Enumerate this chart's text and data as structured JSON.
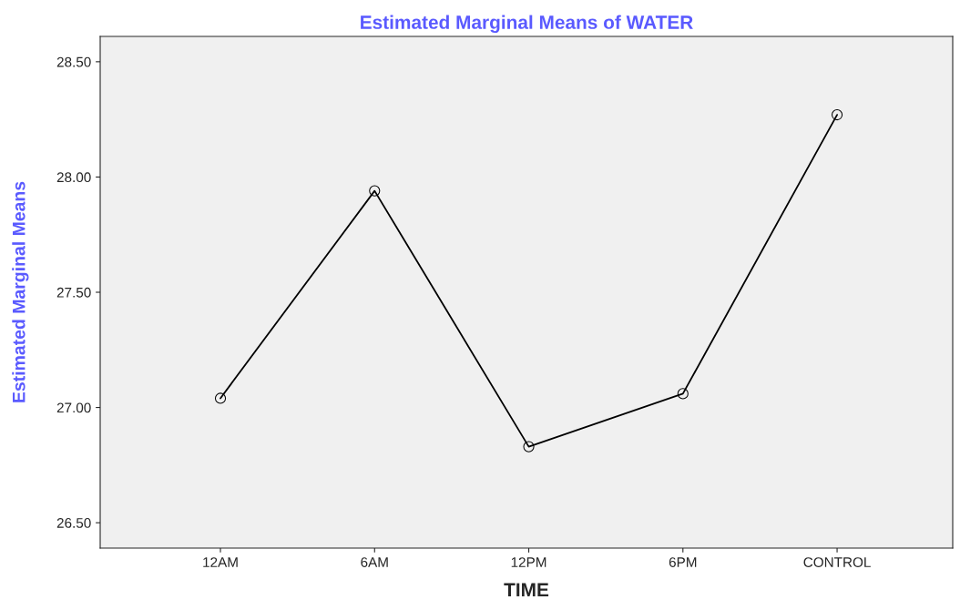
{
  "chart_data": {
    "type": "line",
    "title": "Estimated Marginal Means of WATER",
    "xlabel": "TIME",
    "ylabel": "Estimated Marginal Means",
    "categories": [
      "12AM",
      "6AM",
      "12PM",
      "6PM",
      "CONTROL"
    ],
    "series": [
      {
        "color": "#000000",
        "values": [
          27.04,
          27.94,
          26.83,
          27.06,
          28.27
        ]
      }
    ],
    "ylim": [
      26.39,
      28.61
    ],
    "yticks": [
      {
        "value": 26.5,
        "label": "26.50"
      },
      {
        "value": 27.0,
        "label": "27.00"
      },
      {
        "value": 27.5,
        "label": "27.50"
      },
      {
        "value": 28.0,
        "label": "28.00"
      },
      {
        "value": 28.5,
        "label": "28.50"
      }
    ],
    "grid": false,
    "marker": "circle",
    "line_style": "solid"
  }
}
